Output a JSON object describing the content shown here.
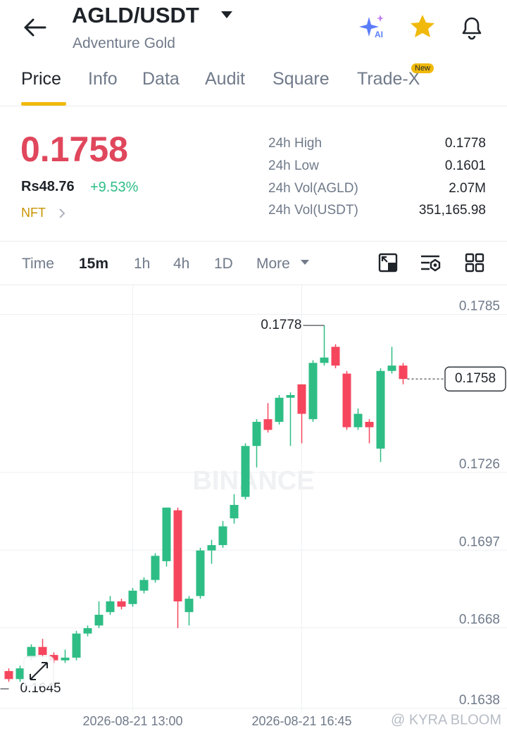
{
  "header": {
    "pair": "AGLD/USDT",
    "name": "Adventure Gold"
  },
  "tabs": [
    "Price",
    "Info",
    "Data",
    "Audit",
    "Square",
    "Trade-X"
  ],
  "tab_badge": "New",
  "price": {
    "last": "0.1758",
    "fiat": "Rs48.76",
    "change": "+9.53%",
    "tag": "NFT"
  },
  "stats": [
    {
      "label": "24h High",
      "value": "0.1778"
    },
    {
      "label": "24h Low",
      "value": "0.1601"
    },
    {
      "label": "24h Vol(AGLD)",
      "value": "2.07M"
    },
    {
      "label": "24h Vol(USDT)",
      "value": "351,165.98"
    }
  ],
  "intervals": [
    "Time",
    "15m",
    "1h",
    "4h",
    "1D",
    "More"
  ],
  "chart_data": {
    "type": "candlestick",
    "categories": [
      null,
      null,
      null,
      null,
      null,
      null,
      null,
      null,
      null,
      null,
      null,
      "2026-08-21 13:00",
      null,
      null,
      null,
      null,
      null,
      null,
      null,
      null,
      null,
      null,
      null,
      null,
      null,
      null,
      "2026-08-21 16:45",
      null,
      null,
      null,
      null,
      null,
      null,
      null,
      null,
      null
    ],
    "open": [
      0.1649,
      0.1646,
      0.1654,
      0.1658,
      0.1655,
      0.1653,
      0.1654,
      0.1663,
      0.1666,
      0.1671,
      0.1675,
      0.1674,
      0.1679,
      0.1683,
      0.169,
      0.1709,
      0.1671,
      0.1677,
      0.1694,
      0.1696,
      0.1706,
      0.1714,
      0.1733,
      0.1743,
      0.1742,
      0.1751,
      0.1756,
      0.1743,
      0.1764,
      0.177,
      0.176,
      0.174,
      0.1742,
      0.1732,
      0.1761,
      0.1763
    ],
    "high": [
      0.165,
      0.1651,
      0.1659,
      0.1661,
      0.1656,
      0.1657,
      0.1664,
      0.1666,
      0.1675,
      0.1677,
      0.1676,
      0.168,
      0.1684,
      0.1693,
      0.171,
      0.171,
      0.1677,
      0.1695,
      0.1698,
      0.1705,
      0.1715,
      0.1734,
      0.1743,
      0.1749,
      0.1752,
      0.1753,
      0.1756,
      0.1765,
      0.1778,
      0.1771,
      0.1761,
      0.1747,
      0.1743,
      0.1762,
      0.177,
      0.1764
    ],
    "low": [
      0.1645,
      0.1645,
      0.1653,
      0.1654,
      0.1652,
      0.1652,
      0.1653,
      0.1662,
      0.1665,
      0.167,
      0.1672,
      0.1673,
      0.1678,
      0.1682,
      0.1688,
      0.1665,
      0.1666,
      0.1676,
      0.1689,
      0.1695,
      0.1704,
      0.1713,
      0.1725,
      0.1738,
      0.1741,
      0.1733,
      0.1734,
      0.1742,
      0.1763,
      0.1762,
      0.1739,
      0.1739,
      0.1734,
      0.1727,
      0.176,
      0.1756
    ],
    "close": [
      0.1646,
      0.165,
      0.1658,
      0.1655,
      0.1653,
      0.1654,
      0.1663,
      0.1665,
      0.167,
      0.1675,
      0.1673,
      0.1679,
      0.1683,
      0.1692,
      0.171,
      0.1675,
      0.1676,
      0.1694,
      0.1696,
      0.1703,
      0.1711,
      0.1733,
      0.1742,
      0.1739,
      0.1751,
      0.1752,
      0.1745,
      0.1764,
      0.1766,
      0.1763,
      0.174,
      0.1745,
      0.174,
      0.1761,
      0.1763,
      0.1758
    ],
    "up_color": "#2ebd85",
    "down_color": "#f6465d",
    "ylim": [
      0.1634,
      0.1793
    ],
    "yticks": [
      0.1638,
      0.1668,
      0.1697,
      0.1726,
      0.1785
    ],
    "grid": true,
    "last_price": 0.1758,
    "high_marker": 0.1778,
    "low_marker": 0.1645,
    "watermark": "BINANCE",
    "credit": "@ KYRA BLOOM"
  }
}
